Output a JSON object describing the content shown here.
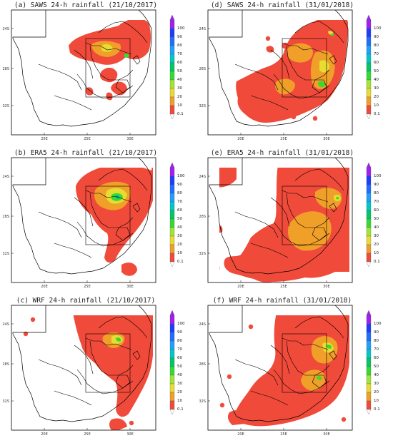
{
  "panels": [
    {
      "id": "a",
      "title": "(a) SAWS 24-h rainfall (21/10/2017)"
    },
    {
      "id": "b",
      "title": "(b) ERA5 24-h rainfall (21/10/2017)"
    },
    {
      "id": "c",
      "title": "(c) WRF 24-h rainfall (21/10/2017)"
    },
    {
      "id": "d",
      "title": "(d) SAWS 24-h rainfall (31/01/2018)"
    },
    {
      "id": "e",
      "title": "(e) ERA5 24-h rainfall (31/01/2018)"
    },
    {
      "id": "f",
      "title": "(f) WRF 24-h rainfall (31/01/2018)"
    }
  ],
  "axis_ticks": {
    "lat": [
      "24S",
      "28S",
      "32S"
    ],
    "lon": [
      "20E",
      "25E",
      "30E"
    ]
  },
  "colorbar": {
    "labels": [
      "100",
      "90",
      "80",
      "70",
      "60",
      "50",
      "40",
      "30",
      "20",
      "10",
      "0.1"
    ],
    "colors": [
      "#a020f0",
      "#1e3cff",
      "#1e6eff",
      "#1ea0ff",
      "#00c8c8",
      "#00c864",
      "#32dc32",
      "#a0e632",
      "#e6dc32",
      "#f0a028",
      "#f04a3a"
    ]
  },
  "colors": {
    "rain_main": "#f04a3a",
    "rain_light": "#f0a028",
    "rain_mid": "#e6dc32",
    "rain_heavy": "#32dc32",
    "rain_peak": "#00a0c8",
    "land_outline": "#000000"
  }
}
